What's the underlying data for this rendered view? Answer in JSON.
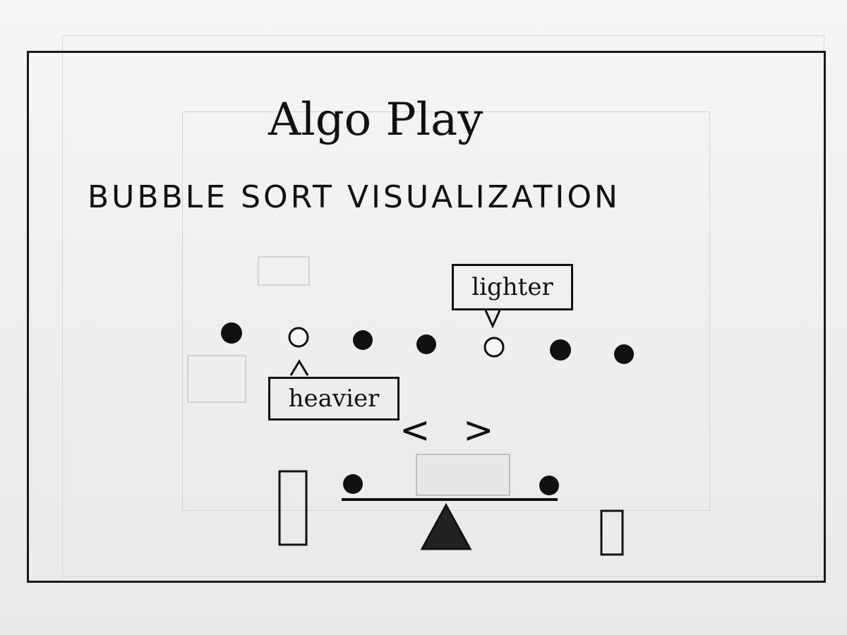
{
  "app": {
    "title": "Algo Play",
    "subtitle": "BUBBLE SORT VISUALIZATION"
  },
  "labels": {
    "lighter": "lighter",
    "heavier": "heavier"
  },
  "controls": {
    "prev_glyph": "<",
    "next_glyph": ">"
  }
}
